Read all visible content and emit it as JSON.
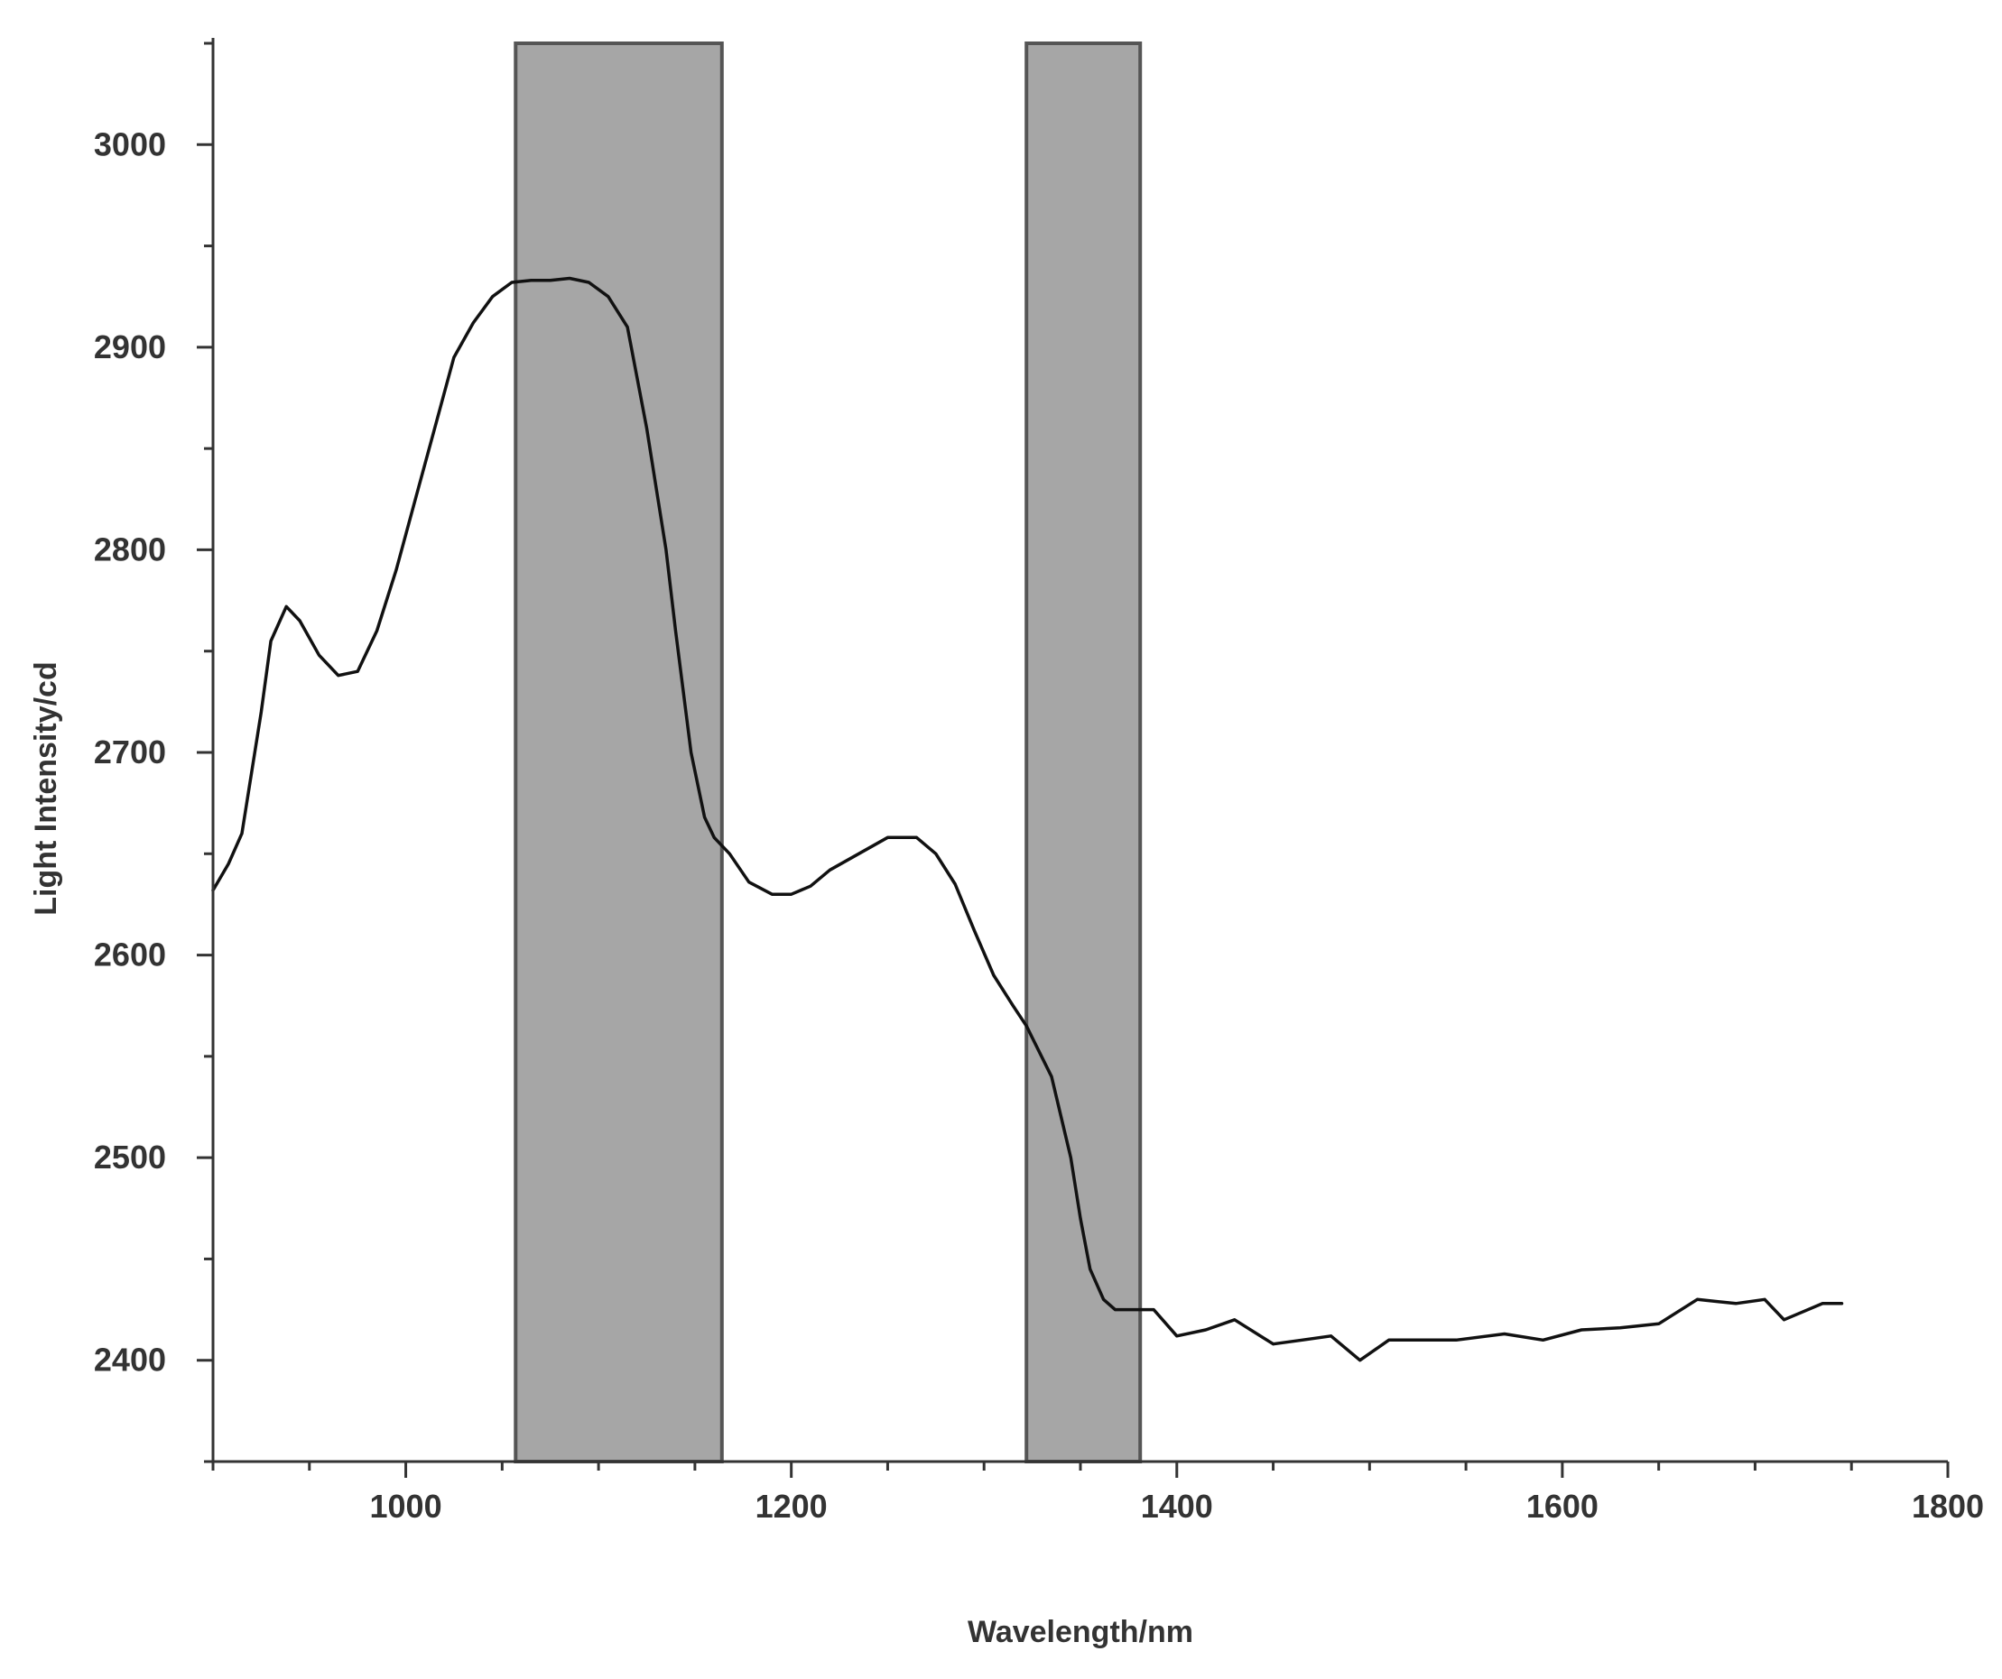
{
  "chart_data": {
    "type": "line",
    "title": "",
    "xlabel": "Wavelength/nm",
    "ylabel": "Light Intensity/cd",
    "xlim": [
      900,
      1800
    ],
    "ylim": [
      2350,
      3050
    ],
    "xticks": [
      1000,
      1200,
      1400,
      1600,
      1800
    ],
    "yticks": [
      2400,
      2500,
      2600,
      2700,
      2800,
      2900,
      3000
    ],
    "grid": false,
    "line_color": "#111111",
    "band_color": "#a6a6a6",
    "band_edge_color": "#555555",
    "highlight_bands": [
      {
        "x_start": 1057,
        "x_end": 1164
      },
      {
        "x_start": 1322,
        "x_end": 1381
      }
    ],
    "series": [
      {
        "x": [
          900,
          908,
          915,
          925,
          930,
          938,
          945,
          955,
          965,
          975,
          985,
          995,
          1005,
          1015,
          1025,
          1035,
          1045,
          1055,
          1065,
          1075,
          1085,
          1095,
          1105,
          1115,
          1125,
          1130,
          1135,
          1140,
          1148,
          1155,
          1160,
          1168,
          1178,
          1190,
          1200,
          1210,
          1220,
          1235,
          1250,
          1265,
          1275,
          1285,
          1295,
          1305,
          1315,
          1322,
          1335,
          1345,
          1350,
          1355,
          1362,
          1368,
          1375,
          1388,
          1400,
          1415,
          1430,
          1450,
          1465,
          1480,
          1495,
          1510,
          1525,
          1545,
          1570,
          1590,
          1610,
          1630,
          1650,
          1670,
          1690,
          1705,
          1715,
          1725,
          1735,
          1745
        ],
        "y": [
          2632,
          2645,
          2660,
          2720,
          2755,
          2772,
          2765,
          2748,
          2738,
          2740,
          2760,
          2790,
          2825,
          2860,
          2895,
          2912,
          2925,
          2932,
          2933,
          2933,
          2934,
          2932,
          2925,
          2910,
          2860,
          2830,
          2800,
          2760,
          2700,
          2668,
          2658,
          2650,
          2636,
          2630,
          2630,
          2634,
          2642,
          2650,
          2658,
          2658,
          2650,
          2635,
          2612,
          2590,
          2575,
          2565,
          2540,
          2500,
          2470,
          2445,
          2430,
          2425,
          2425,
          2425,
          2412,
          2415,
          2420,
          2408,
          2410,
          2412,
          2400,
          2410,
          2410,
          2410,
          2413,
          2410,
          2415,
          2416,
          2418,
          2430,
          2428,
          2430,
          2420,
          2424,
          2428,
          2428
        ]
      }
    ]
  }
}
